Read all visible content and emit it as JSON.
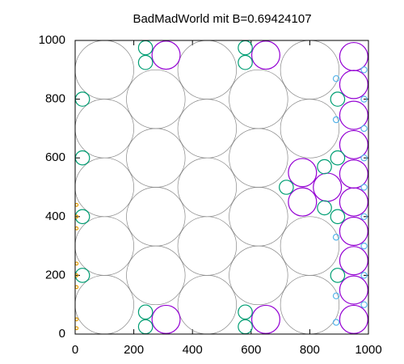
{
  "chart_data": {
    "type": "bubble",
    "title": "BadMadWorld mit B=0.69424107",
    "xlim": [
      0,
      1000
    ],
    "ylim": [
      0,
      1000
    ],
    "xticks": [
      0,
      200,
      400,
      600,
      800,
      1000
    ],
    "yticks": [
      0,
      200,
      400,
      600,
      800,
      1000
    ],
    "grid": false,
    "series": [
      {
        "color": "#888888",
        "x": [
          100,
          100,
          100,
          100,
          100,
          275,
          275,
          275,
          275,
          450,
          450,
          450,
          450,
          450,
          625,
          625,
          625,
          625,
          800,
          800,
          800,
          800
        ],
        "y": [
          100,
          300,
          500,
          700,
          900,
          200,
          400,
          600,
          800,
          100,
          300,
          500,
          700,
          900,
          200,
          400,
          600,
          800,
          100,
          300,
          700,
          900
        ],
        "r": [
          100,
          100,
          100,
          100,
          100,
          100,
          100,
          100,
          100,
          100,
          100,
          100,
          100,
          100,
          100,
          100,
          100,
          100,
          100,
          100,
          100,
          100
        ]
      },
      {
        "color": "#9400d3",
        "x": [
          950,
          950,
          950,
          950,
          950,
          950,
          950,
          950,
          950,
          950,
          310,
          650,
          310,
          650,
          775,
          775,
          860
        ],
        "y": [
          50,
          150,
          250,
          350,
          450,
          545,
          645,
          745,
          850,
          945,
          950,
          950,
          50,
          50,
          550,
          450,
          500
        ],
        "r": [
          48,
          48,
          48,
          48,
          48,
          48,
          48,
          48,
          48,
          48,
          48,
          48,
          48,
          48,
          48,
          48,
          48
        ]
      },
      {
        "color": "#009e73",
        "x": [
          240,
          240,
          580,
          580,
          240,
          240,
          580,
          580,
          25,
          25,
          25,
          25,
          895,
          895,
          895,
          895,
          720,
          850,
          850
        ],
        "y": [
          975,
          925,
          975,
          925,
          75,
          25,
          75,
          25,
          800,
          600,
          400,
          200,
          800,
          600,
          400,
          200,
          500,
          570,
          430
        ],
        "r": [
          24,
          24,
          24,
          24,
          24,
          24,
          24,
          24,
          24,
          24,
          24,
          24,
          24,
          24,
          24,
          24,
          24,
          24,
          24
        ]
      },
      {
        "color": "#56b4e9",
        "x": [
          985,
          985,
          985,
          985,
          985,
          985,
          985,
          985,
          985,
          890,
          890,
          890,
          890,
          890
        ],
        "y": [
          900,
          800,
          700,
          600,
          500,
          400,
          300,
          200,
          100,
          870,
          730,
          330,
          130,
          40
        ],
        "r": [
          10,
          10,
          10,
          10,
          10,
          10,
          10,
          10,
          10,
          10,
          10,
          10,
          10,
          10
        ]
      },
      {
        "color": "#e69f00",
        "x": [
          5,
          5,
          5,
          5,
          5,
          5,
          5,
          5
        ],
        "y": [
          20,
          50,
          160,
          200,
          240,
          360,
          400,
          440
        ],
        "r": [
          5,
          5,
          5,
          5,
          5,
          5,
          5,
          5
        ]
      }
    ]
  }
}
